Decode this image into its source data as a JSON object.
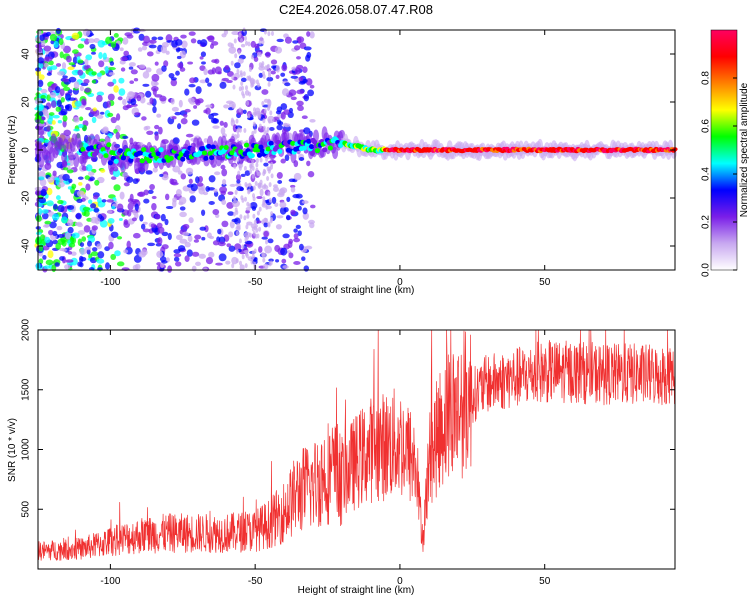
{
  "title": "C2E4.2026.058.07.47.R08",
  "chart_data": [
    {
      "type": "heatmap",
      "name": "spectrogram",
      "xlabel": "Height of straight line (km)",
      "ylabel": "Frequency (Hz)",
      "xlim": [
        -125,
        95
      ],
      "ylim": [
        -50,
        50
      ],
      "xticks": [
        -100,
        -50,
        0,
        50
      ],
      "yticks": [
        -40,
        -20,
        0,
        20,
        40
      ],
      "colorbar": {
        "label": "Normalized spectral amplitude",
        "range": [
          0,
          1
        ],
        "ticks": [
          "0.0",
          "0.2",
          "0.4",
          "0.6",
          "0.8"
        ],
        "tick_values": [
          0.0,
          0.2,
          0.4,
          0.6,
          0.8
        ],
        "colormap": [
          "#ffffff",
          "#c8a8f0",
          "#7a1ee8",
          "#0000ff",
          "#00ffff",
          "#00ff00",
          "#ffff00",
          "#ff8000",
          "#ff0000",
          "#ff0060"
        ]
      },
      "center_line": [
        {
          "x": -100,
          "freq": -3
        },
        {
          "x": -50,
          "freq": 0
        },
        {
          "x": -20,
          "freq": 3
        },
        {
          "x": -10,
          "freq": 0
        },
        {
          "x": 0,
          "freq": 0
        },
        {
          "x": 95,
          "freq": 0
        }
      ]
    },
    {
      "type": "line",
      "name": "snr",
      "xlabel": "Height of straight line (km)",
      "ylabel": "SNR (10 * v/v)",
      "xlim": [
        -125,
        95
      ],
      "ylim": [
        0,
        2000
      ],
      "xticks": [
        -100,
        -50,
        0,
        50
      ],
      "yticks": [
        500,
        1000,
        1500,
        2000
      ],
      "color": "#f03030",
      "series": [
        {
          "name": "SNR",
          "x": [
            -125,
            -110,
            -100,
            -90,
            -80,
            -70,
            -60,
            -50,
            -45,
            -40,
            -35,
            -30,
            -25,
            -20,
            -15,
            -10,
            -5,
            0,
            5,
            8,
            10,
            15,
            20,
            25,
            30,
            40,
            50,
            60,
            70,
            80,
            90,
            95
          ],
          "y": [
            150,
            170,
            230,
            280,
            300,
            300,
            300,
            320,
            380,
            480,
            650,
            700,
            820,
            780,
            900,
            1000,
            1030,
            1060,
            900,
            250,
            900,
            1250,
            1350,
            1450,
            1550,
            1600,
            1650,
            1650,
            1630,
            1630,
            1620,
            1630
          ]
        }
      ]
    }
  ]
}
